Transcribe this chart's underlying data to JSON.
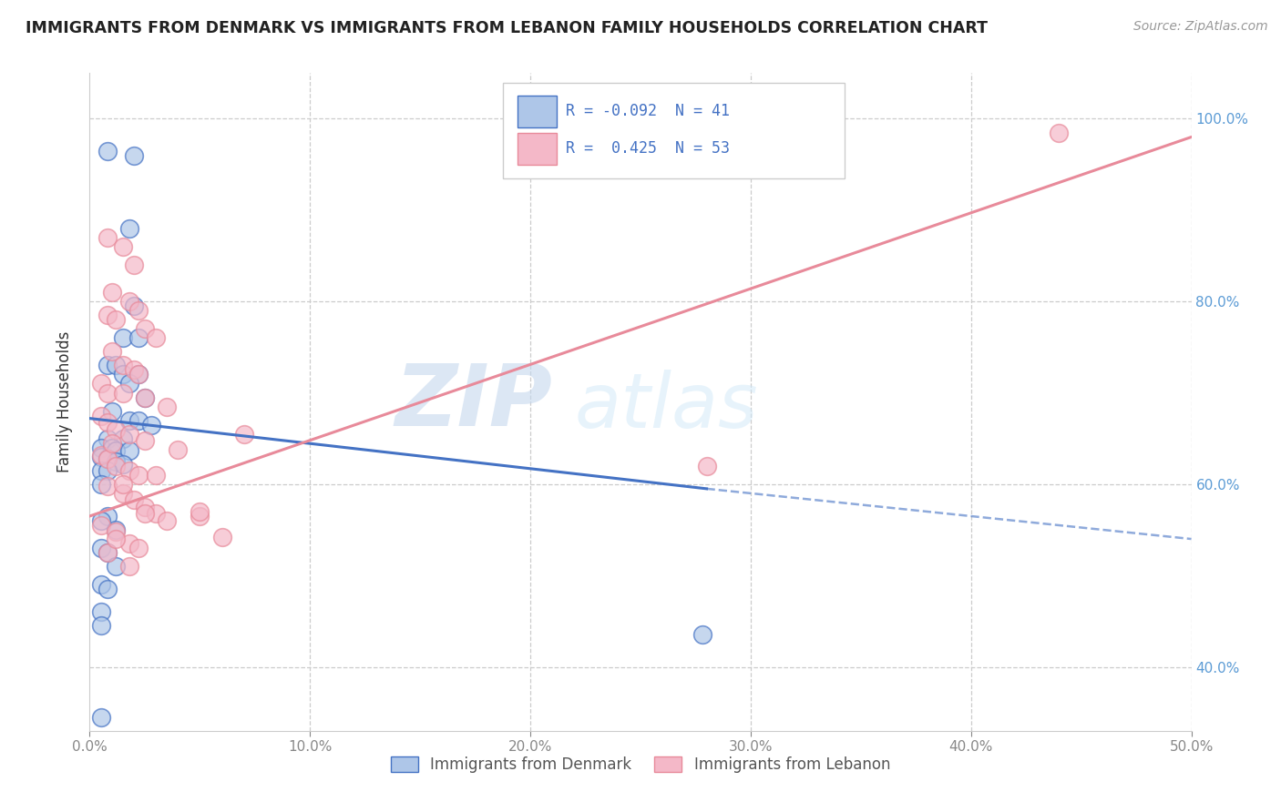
{
  "title": "IMMIGRANTS FROM DENMARK VS IMMIGRANTS FROM LEBANON FAMILY HOUSEHOLDS CORRELATION CHART",
  "source": "Source: ZipAtlas.com",
  "ylabel_left": "Family Households",
  "xlim": [
    0.0,
    0.5
  ],
  "ylim": [
    0.33,
    1.05
  ],
  "watermark_zip": "ZIP",
  "watermark_atlas": "atlas",
  "legend": {
    "denmark_R": "-0.092",
    "denmark_N": "41",
    "lebanon_R": " 0.425",
    "lebanon_N": "53"
  },
  "denmark_color": "#aec6e8",
  "lebanon_color": "#f4b8c8",
  "denmark_line_color": "#4472c4",
  "lebanon_line_color": "#e88a9a",
  "denmark_points": [
    [
      0.008,
      0.965
    ],
    [
      0.02,
      0.96
    ],
    [
      0.018,
      0.88
    ],
    [
      0.02,
      0.795
    ],
    [
      0.015,
      0.76
    ],
    [
      0.022,
      0.76
    ],
    [
      0.008,
      0.73
    ],
    [
      0.012,
      0.73
    ],
    [
      0.015,
      0.72
    ],
    [
      0.022,
      0.72
    ],
    [
      0.018,
      0.71
    ],
    [
      0.025,
      0.695
    ],
    [
      0.01,
      0.68
    ],
    [
      0.018,
      0.67
    ],
    [
      0.022,
      0.67
    ],
    [
      0.028,
      0.665
    ],
    [
      0.008,
      0.65
    ],
    [
      0.015,
      0.65
    ],
    [
      0.005,
      0.64
    ],
    [
      0.01,
      0.64
    ],
    [
      0.012,
      0.637
    ],
    [
      0.018,
      0.637
    ],
    [
      0.005,
      0.63
    ],
    [
      0.008,
      0.628
    ],
    [
      0.012,
      0.625
    ],
    [
      0.015,
      0.622
    ],
    [
      0.005,
      0.615
    ],
    [
      0.008,
      0.615
    ],
    [
      0.005,
      0.6
    ],
    [
      0.008,
      0.565
    ],
    [
      0.005,
      0.56
    ],
    [
      0.012,
      0.55
    ],
    [
      0.005,
      0.53
    ],
    [
      0.008,
      0.525
    ],
    [
      0.012,
      0.51
    ],
    [
      0.005,
      0.49
    ],
    [
      0.008,
      0.485
    ],
    [
      0.005,
      0.46
    ],
    [
      0.005,
      0.445
    ],
    [
      0.278,
      0.435
    ],
    [
      0.005,
      0.345
    ]
  ],
  "lebanon_points": [
    [
      0.44,
      0.985
    ],
    [
      0.008,
      0.87
    ],
    [
      0.015,
      0.86
    ],
    [
      0.02,
      0.84
    ],
    [
      0.01,
      0.81
    ],
    [
      0.018,
      0.8
    ],
    [
      0.022,
      0.79
    ],
    [
      0.008,
      0.785
    ],
    [
      0.012,
      0.78
    ],
    [
      0.025,
      0.77
    ],
    [
      0.03,
      0.76
    ],
    [
      0.01,
      0.745
    ],
    [
      0.015,
      0.73
    ],
    [
      0.02,
      0.725
    ],
    [
      0.022,
      0.72
    ],
    [
      0.005,
      0.71
    ],
    [
      0.008,
      0.7
    ],
    [
      0.015,
      0.7
    ],
    [
      0.025,
      0.695
    ],
    [
      0.035,
      0.685
    ],
    [
      0.005,
      0.675
    ],
    [
      0.008,
      0.668
    ],
    [
      0.012,
      0.66
    ],
    [
      0.018,
      0.655
    ],
    [
      0.025,
      0.648
    ],
    [
      0.04,
      0.638
    ],
    [
      0.005,
      0.632
    ],
    [
      0.008,
      0.628
    ],
    [
      0.012,
      0.62
    ],
    [
      0.018,
      0.615
    ],
    [
      0.022,
      0.61
    ],
    [
      0.008,
      0.598
    ],
    [
      0.015,
      0.59
    ],
    [
      0.02,
      0.583
    ],
    [
      0.025,
      0.575
    ],
    [
      0.03,
      0.568
    ],
    [
      0.05,
      0.565
    ],
    [
      0.005,
      0.555
    ],
    [
      0.012,
      0.548
    ],
    [
      0.018,
      0.535
    ],
    [
      0.022,
      0.53
    ],
    [
      0.035,
      0.56
    ],
    [
      0.06,
      0.542
    ],
    [
      0.008,
      0.525
    ],
    [
      0.015,
      0.6
    ],
    [
      0.018,
      0.51
    ],
    [
      0.025,
      0.568
    ],
    [
      0.03,
      0.61
    ],
    [
      0.012,
      0.54
    ],
    [
      0.28,
      0.62
    ],
    [
      0.05,
      0.57
    ],
    [
      0.07,
      0.655
    ],
    [
      0.01,
      0.645
    ]
  ],
  "dk_line_solid": [
    [
      0.0,
      0.672
    ],
    [
      0.28,
      0.595
    ]
  ],
  "dk_line_dashed": [
    [
      0.28,
      0.595
    ],
    [
      0.5,
      0.54
    ]
  ],
  "lb_line": [
    [
      0.0,
      0.565
    ],
    [
      0.5,
      0.98
    ]
  ],
  "background_color": "#ffffff",
  "grid_color": "#cccccc",
  "tick_color": "#888888",
  "right_tick_color": "#5b9bd5"
}
